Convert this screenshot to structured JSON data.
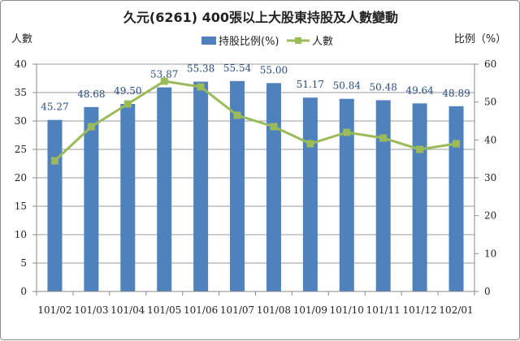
{
  "chart_data": {
    "type": "bar",
    "title": "久元(6261) 400張以上大股東持股及人數變動",
    "categories": [
      "101/02",
      "101/03",
      "101/04",
      "101/05",
      "101/06",
      "101/07",
      "101/08",
      "101/09",
      "101/10",
      "101/11",
      "101/12",
      "102/01"
    ],
    "left_axis": {
      "label": "人數",
      "range": [
        0,
        40
      ],
      "ticks": [
        0,
        5,
        10,
        15,
        20,
        25,
        30,
        35,
        40
      ]
    },
    "right_axis": {
      "label": "比例（%）",
      "range": [
        0,
        60
      ],
      "ticks": [
        0,
        10,
        20,
        30,
        40,
        50,
        60
      ]
    },
    "series": [
      {
        "name": "持股比例(%)",
        "type": "bar",
        "axis": "right",
        "color": "#4f81bd",
        "values": [
          45.27,
          48.68,
          49.5,
          53.87,
          55.38,
          55.54,
          55.0,
          51.17,
          50.84,
          50.48,
          49.64,
          48.89
        ],
        "labels": [
          "45.27",
          "48.68",
          "49.50",
          "53.87",
          "55.38",
          "55.54",
          "55.00",
          "51.17",
          "50.84",
          "50.48",
          "49.64",
          "48.89"
        ]
      },
      {
        "name": "人數",
        "type": "line",
        "axis": "left",
        "color": "#9bbb59",
        "values": [
          23,
          29,
          33,
          37,
          36,
          31,
          29,
          26,
          28,
          27,
          25,
          26
        ]
      }
    ],
    "grid": true,
    "legend_position": "top"
  }
}
